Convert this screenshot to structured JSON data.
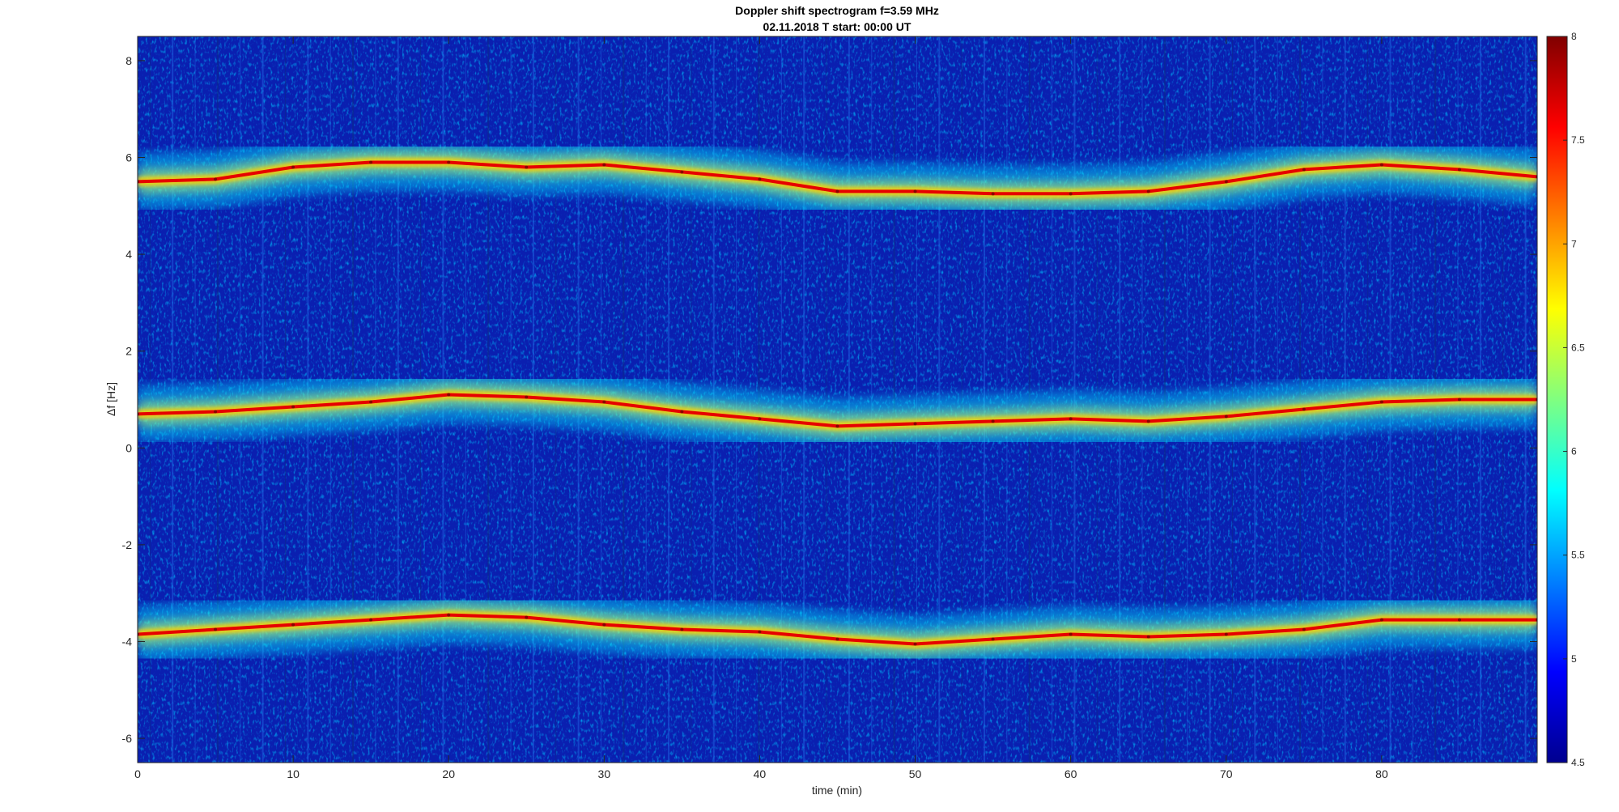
{
  "chart_data": {
    "type": "heatmap",
    "title": "Doppler shift spectrogram f=3.59 MHz",
    "subtitle": "02.11.2018   T start: 00:00 UT",
    "xlabel": "time (min)",
    "ylabel": "Δf [Hz]",
    "xlim": [
      0,
      90
    ],
    "ylim": [
      -6.5,
      8.5
    ],
    "x_ticks": [
      0,
      10,
      20,
      30,
      40,
      50,
      60,
      70,
      80
    ],
    "y_ticks": [
      8,
      6,
      4,
      2,
      0,
      -2,
      -4,
      -6
    ],
    "colorbar": {
      "colormap": "jet",
      "range": [
        4.5,
        8
      ],
      "ticks": [
        8,
        7.5,
        7,
        6.5,
        6,
        5.5,
        5,
        4.5
      ]
    },
    "series": [
      {
        "x": [
          0,
          5,
          10,
          15,
          20,
          25,
          30,
          35,
          40,
          45,
          50,
          55,
          60,
          65,
          70,
          75,
          80,
          85,
          90
        ],
        "y": [
          5.5,
          5.55,
          5.8,
          5.9,
          5.9,
          5.8,
          5.85,
          5.7,
          5.55,
          5.3,
          5.3,
          5.25,
          5.25,
          5.3,
          5.5,
          5.75,
          5.85,
          5.75,
          5.6
        ]
      },
      {
        "x": [
          0,
          5,
          10,
          15,
          20,
          25,
          30,
          35,
          40,
          45,
          50,
          55,
          60,
          65,
          70,
          75,
          80,
          85,
          90
        ],
        "y": [
          0.7,
          0.75,
          0.85,
          0.95,
          1.1,
          1.05,
          0.95,
          0.75,
          0.6,
          0.45,
          0.5,
          0.55,
          0.6,
          0.55,
          0.65,
          0.8,
          0.95,
          1.0,
          1.0
        ]
      },
      {
        "x": [
          0,
          5,
          10,
          15,
          20,
          25,
          30,
          35,
          40,
          45,
          50,
          55,
          60,
          65,
          70,
          75,
          80,
          85,
          90
        ],
        "y": [
          -3.85,
          -3.75,
          -3.65,
          -3.55,
          -3.45,
          -3.5,
          -3.65,
          -3.75,
          -3.8,
          -3.95,
          -4.05,
          -3.95,
          -3.85,
          -3.9,
          -3.85,
          -3.75,
          -3.55,
          -3.55,
          -3.55
        ]
      }
    ]
  }
}
